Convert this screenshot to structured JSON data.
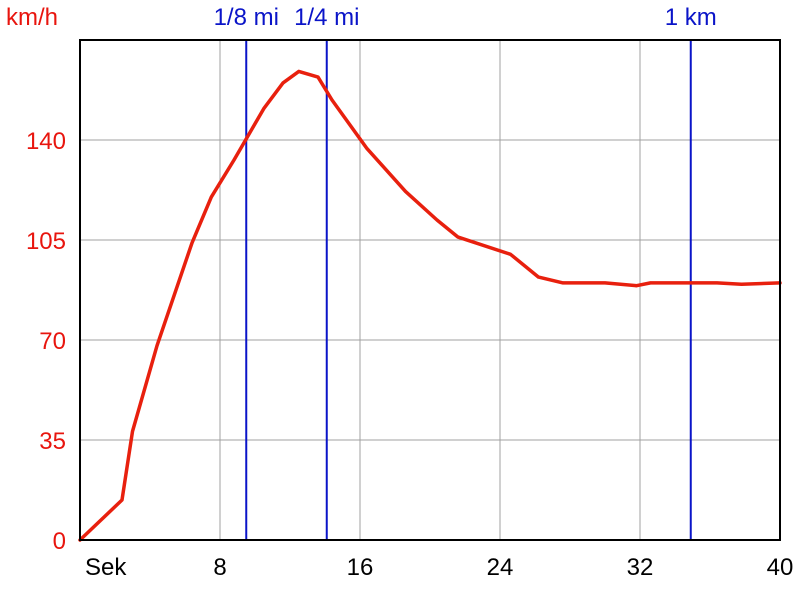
{
  "chart_data": {
    "type": "line",
    "title": "",
    "ylabel": "km/h",
    "xlabel": "Sek",
    "xlim": [
      0,
      40
    ],
    "ylim": [
      0,
      175
    ],
    "x_ticks": [
      {
        "value": 0,
        "label": "Sek"
      },
      {
        "value": 8,
        "label": "8"
      },
      {
        "value": 16,
        "label": "16"
      },
      {
        "value": 24,
        "label": "24"
      },
      {
        "value": 32,
        "label": "32"
      },
      {
        "value": 40,
        "label": "40"
      }
    ],
    "y_ticks": [
      {
        "value": 0,
        "label": "0"
      },
      {
        "value": 35,
        "label": "35"
      },
      {
        "value": 70,
        "label": "70"
      },
      {
        "value": 105,
        "label": "105"
      },
      {
        "value": 140,
        "label": "140"
      }
    ],
    "grid": true,
    "series": [
      {
        "color": "#e8200e",
        "points": [
          [
            0,
            0
          ],
          [
            2.4,
            14
          ],
          [
            3.0,
            38
          ],
          [
            4.4,
            68
          ],
          [
            6.4,
            104
          ],
          [
            7.5,
            120
          ],
          [
            8.8,
            133
          ],
          [
            10.5,
            151
          ],
          [
            11.6,
            160
          ],
          [
            12.5,
            164
          ],
          [
            13.6,
            162
          ],
          [
            14.4,
            154
          ],
          [
            16.4,
            137
          ],
          [
            18.6,
            122
          ],
          [
            20.4,
            112
          ],
          [
            21.6,
            106
          ],
          [
            24.6,
            100
          ],
          [
            26.2,
            92
          ],
          [
            27.6,
            90
          ],
          [
            30.0,
            90
          ],
          [
            31.8,
            89
          ],
          [
            32.6,
            90
          ],
          [
            35.2,
            90
          ],
          [
            36.4,
            90
          ],
          [
            37.8,
            89.5
          ],
          [
            40.0,
            90
          ]
        ]
      }
    ],
    "markers": [
      {
        "x": 9.5,
        "label": "1/8 mi",
        "color": "#0a14c8"
      },
      {
        "x": 14.1,
        "label": "1/4 mi",
        "color": "#0a14c8"
      },
      {
        "x": 34.9,
        "label": "1 km",
        "color": "#0a14c8"
      }
    ]
  }
}
